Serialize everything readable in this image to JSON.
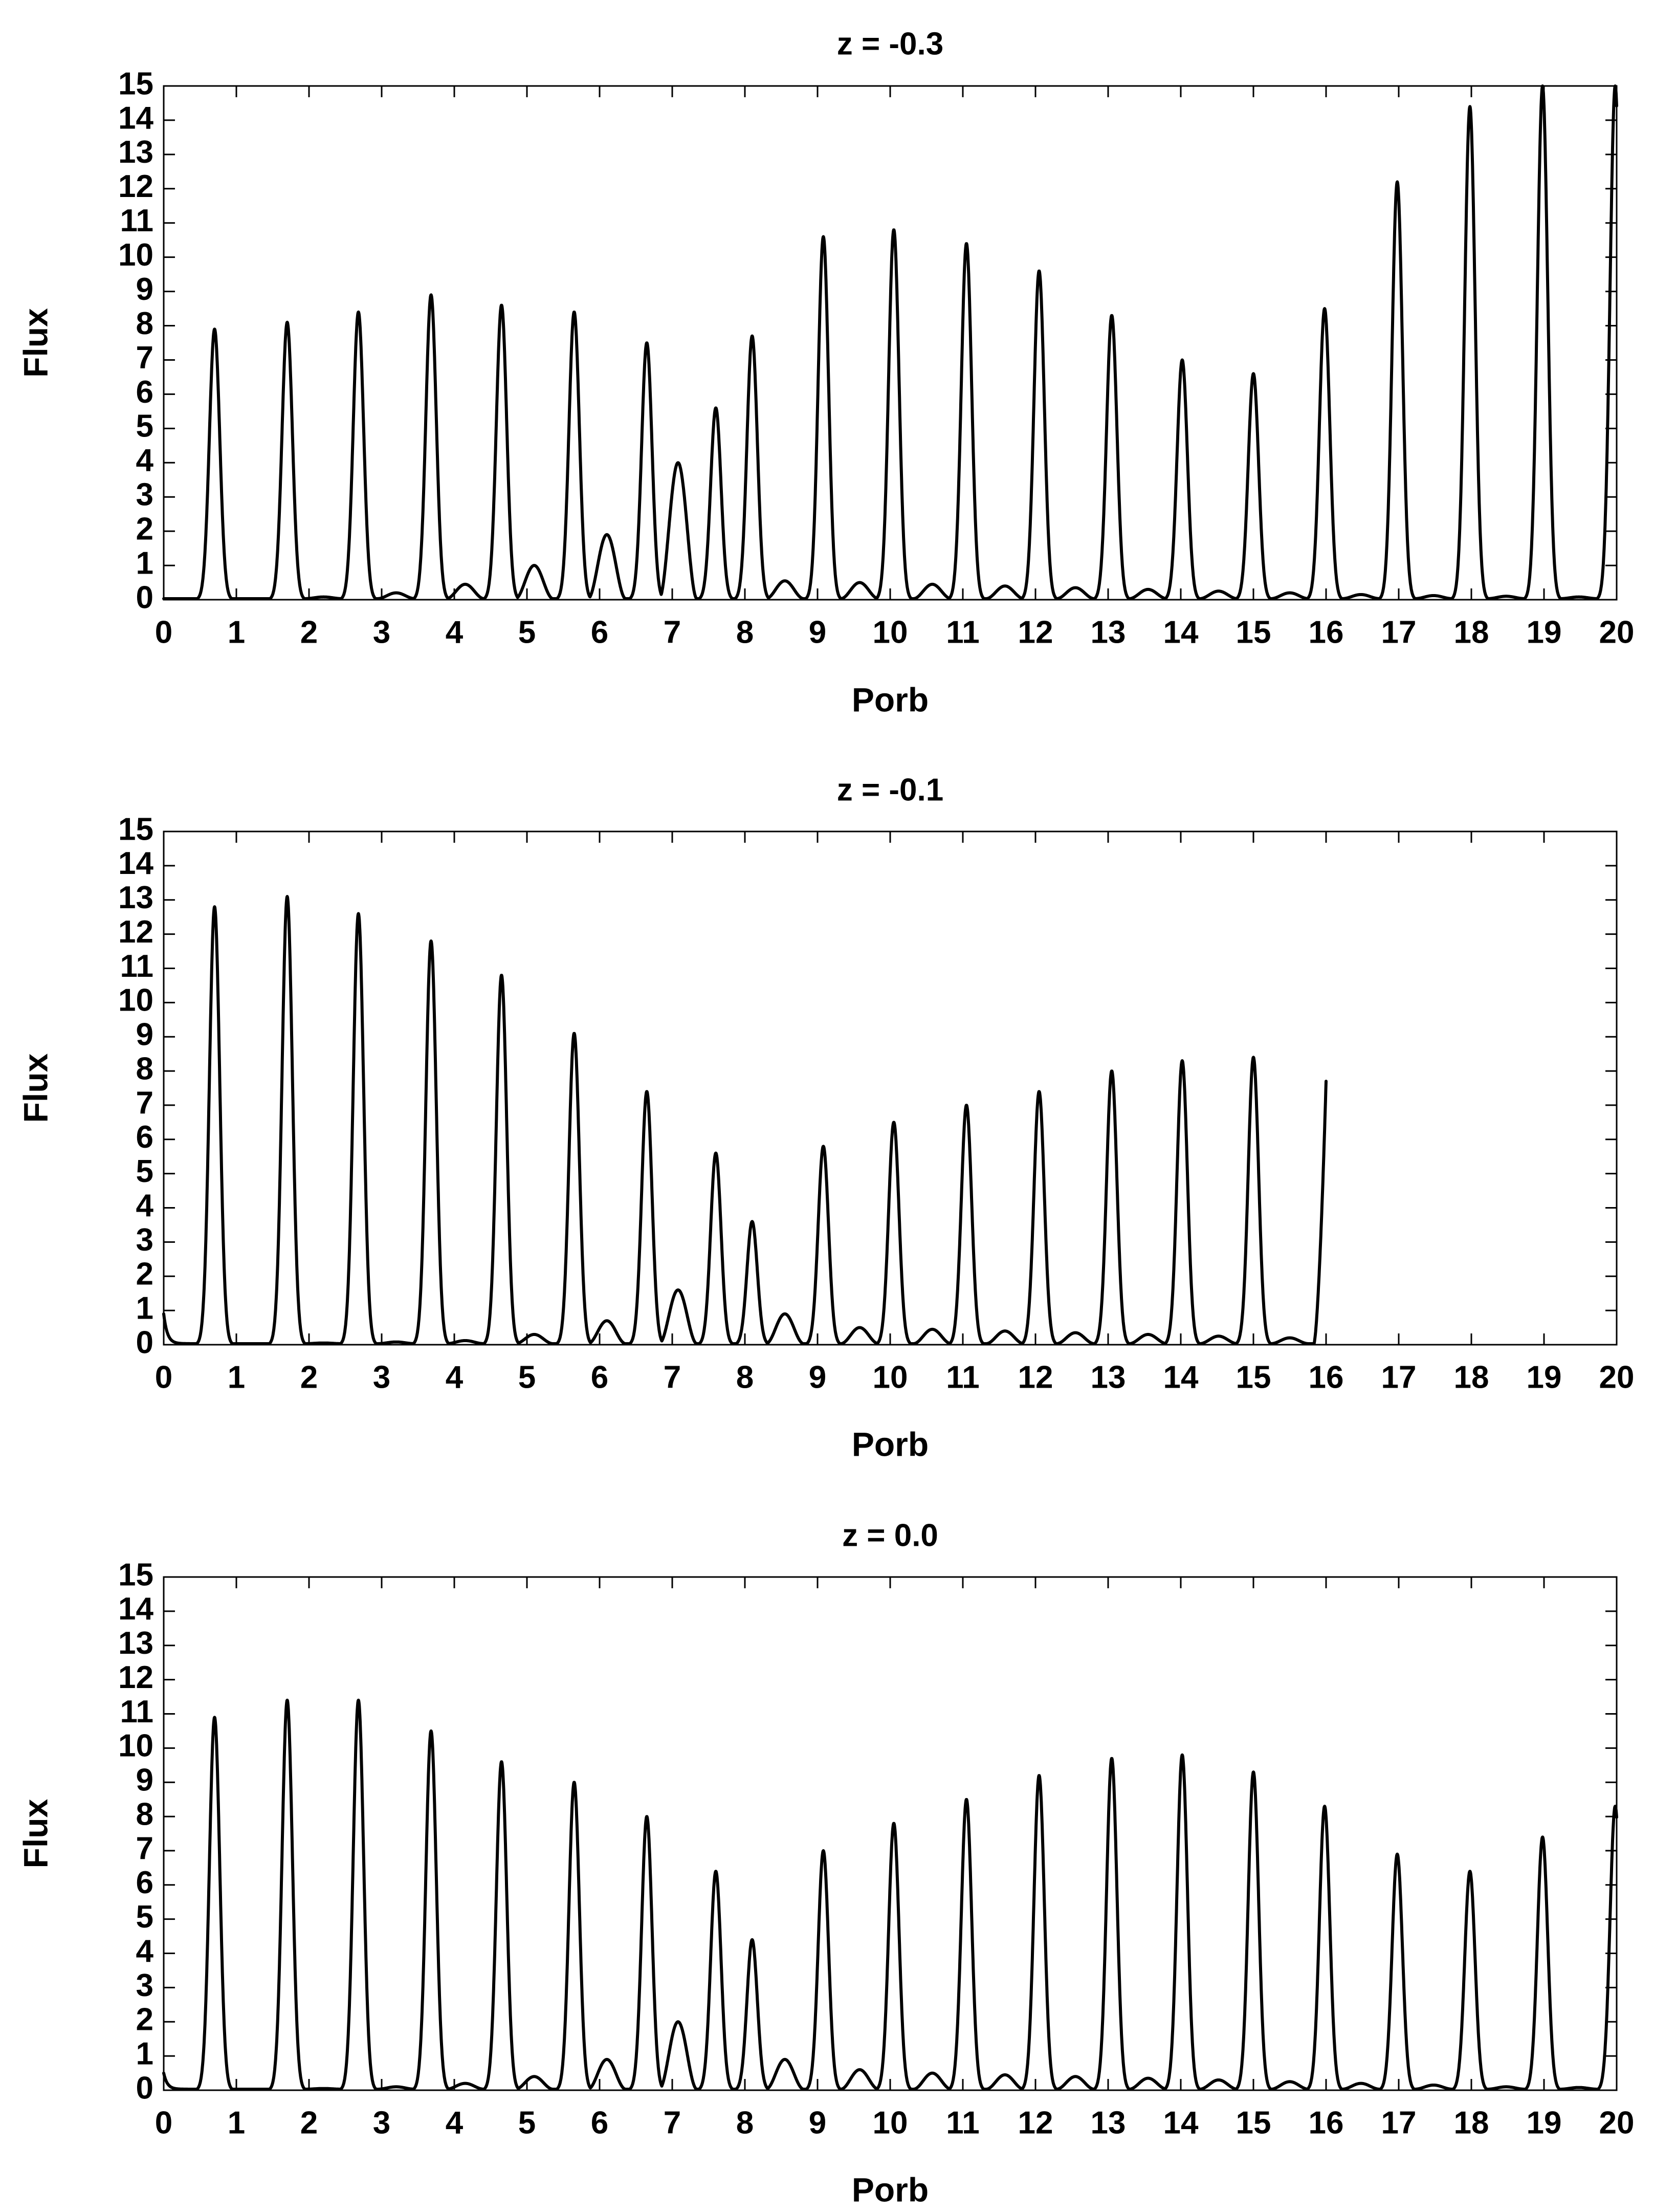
{
  "chart_data": [
    {
      "type": "line",
      "title": "z = -0.3",
      "xlabel": "Porb",
      "ylabel": "Flux",
      "xlim": [
        0,
        20
      ],
      "ylim": [
        0,
        15
      ],
      "xticks": [
        "0",
        "1",
        "2",
        "3",
        "4",
        "5",
        "6",
        "7",
        "8",
        "9",
        "10",
        "11",
        "12",
        "13",
        "14",
        "15",
        "16",
        "17",
        "18",
        "19",
        "20"
      ],
      "yticks": [
        "0",
        "1",
        "2",
        "3",
        "4",
        "5",
        "6",
        "7",
        "8",
        "9",
        "10",
        "11",
        "12",
        "13",
        "14",
        "15"
      ],
      "grid": false,
      "series": [
        {
          "name": "flux",
          "x_end": 20,
          "baseline": 0.03,
          "peak_halfwidth": 0.17,
          "peaks": [
            {
              "x": 0.7,
              "y": 7.9
            },
            {
              "x": 1.7,
              "y": 8.1
            },
            {
              "x": 2.68,
              "y": 8.4
            },
            {
              "x": 3.68,
              "y": 8.9
            },
            {
              "x": 4.65,
              "y": 8.6
            },
            {
              "x": 5.65,
              "y": 8.4
            },
            {
              "x": 6.65,
              "y": 7.5
            },
            {
              "x": 7.6,
              "y": 5.6
            },
            {
              "x": 8.1,
              "y": 7.7
            },
            {
              "x": 9.08,
              "y": 10.6
            },
            {
              "x": 10.05,
              "y": 10.8
            },
            {
              "x": 11.05,
              "y": 10.4
            },
            {
              "x": 12.05,
              "y": 9.6
            },
            {
              "x": 13.05,
              "y": 8.3
            },
            {
              "x": 14.02,
              "y": 7.0
            },
            {
              "x": 15.0,
              "y": 6.6
            },
            {
              "x": 15.98,
              "y": 8.5
            },
            {
              "x": 16.98,
              "y": 12.2
            },
            {
              "x": 17.98,
              "y": 14.4
            },
            {
              "x": 18.98,
              "y": 15.0
            },
            {
              "x": 19.98,
              "y": 15.0
            }
          ],
          "humps": [
            {
              "x": 1.2,
              "y": 0.03
            },
            {
              "x": 2.2,
              "y": 0.08
            },
            {
              "x": 3.2,
              "y": 0.2
            },
            {
              "x": 4.15,
              "y": 0.45
            },
            {
              "x": 5.1,
              "y": 1.0
            },
            {
              "x": 6.1,
              "y": 1.9
            },
            {
              "x": 7.08,
              "y": 4.0
            },
            {
              "x": 8.55,
              "y": 0.55
            },
            {
              "x": 9.58,
              "y": 0.5
            },
            {
              "x": 10.58,
              "y": 0.45
            },
            {
              "x": 11.58,
              "y": 0.4
            },
            {
              "x": 12.55,
              "y": 0.35
            },
            {
              "x": 13.55,
              "y": 0.3
            },
            {
              "x": 14.52,
              "y": 0.25
            },
            {
              "x": 15.5,
              "y": 0.2
            },
            {
              "x": 16.48,
              "y": 0.15
            },
            {
              "x": 17.48,
              "y": 0.12
            },
            {
              "x": 18.48,
              "y": 0.1
            },
            {
              "x": 19.48,
              "y": 0.08
            }
          ]
        }
      ]
    },
    {
      "type": "line",
      "title": "z = -0.1",
      "xlabel": "Porb",
      "ylabel": "Flux",
      "xlim": [
        0,
        20
      ],
      "ylim": [
        0,
        15
      ],
      "xticks": [
        "0",
        "1",
        "2",
        "3",
        "4",
        "5",
        "6",
        "7",
        "8",
        "9",
        "10",
        "11",
        "12",
        "13",
        "14",
        "15",
        "16",
        "17",
        "18",
        "19",
        "20"
      ],
      "yticks": [
        "0",
        "1",
        "2",
        "3",
        "4",
        "5",
        "6",
        "7",
        "8",
        "9",
        "10",
        "11",
        "12",
        "13",
        "14",
        "15"
      ],
      "grid": false,
      "series": [
        {
          "name": "flux",
          "x_end": 16,
          "start_y": 0.9,
          "baseline": 0.03,
          "peak_halfwidth": 0.17,
          "peaks": [
            {
              "x": 0.7,
              "y": 12.8
            },
            {
              "x": 1.7,
              "y": 13.1
            },
            {
              "x": 2.68,
              "y": 12.6
            },
            {
              "x": 3.68,
              "y": 11.8
            },
            {
              "x": 4.65,
              "y": 10.8
            },
            {
              "x": 5.65,
              "y": 9.1
            },
            {
              "x": 6.65,
              "y": 7.4
            },
            {
              "x": 7.6,
              "y": 5.6
            },
            {
              "x": 8.1,
              "y": 3.6
            },
            {
              "x": 9.08,
              "y": 5.8
            },
            {
              "x": 10.05,
              "y": 6.5
            },
            {
              "x": 11.05,
              "y": 7.0
            },
            {
              "x": 12.05,
              "y": 7.4
            },
            {
              "x": 13.05,
              "y": 8.0
            },
            {
              "x": 14.02,
              "y": 8.3
            },
            {
              "x": 15.0,
              "y": 8.4
            }
          ],
          "humps": [
            {
              "x": 1.2,
              "y": 0.03
            },
            {
              "x": 2.2,
              "y": 0.05
            },
            {
              "x": 3.2,
              "y": 0.08
            },
            {
              "x": 4.15,
              "y": 0.12
            },
            {
              "x": 5.1,
              "y": 0.3
            },
            {
              "x": 6.1,
              "y": 0.7
            },
            {
              "x": 7.08,
              "y": 1.6
            },
            {
              "x": 8.55,
              "y": 0.9
            },
            {
              "x": 9.58,
              "y": 0.5
            },
            {
              "x": 10.58,
              "y": 0.45
            },
            {
              "x": 11.58,
              "y": 0.4
            },
            {
              "x": 12.55,
              "y": 0.35
            },
            {
              "x": 13.55,
              "y": 0.3
            },
            {
              "x": 14.52,
              "y": 0.25
            },
            {
              "x": 15.5,
              "y": 0.2
            }
          ],
          "end_y": 7.7
        }
      ]
    },
    {
      "type": "line",
      "title": "z = 0.0",
      "xlabel": "Porb",
      "ylabel": "Flux",
      "xlim": [
        0,
        20
      ],
      "ylim": [
        0,
        15
      ],
      "xticks": [
        "0",
        "1",
        "2",
        "3",
        "4",
        "5",
        "6",
        "7",
        "8",
        "9",
        "10",
        "11",
        "12",
        "13",
        "14",
        "15",
        "16",
        "17",
        "18",
        "19",
        "20"
      ],
      "yticks": [
        "0",
        "1",
        "2",
        "3",
        "4",
        "5",
        "6",
        "7",
        "8",
        "9",
        "10",
        "11",
        "12",
        "13",
        "14",
        "15"
      ],
      "grid": false,
      "series": [
        {
          "name": "flux",
          "x_end": 20,
          "start_y": 0.5,
          "baseline": 0.03,
          "peak_halfwidth": 0.17,
          "peaks": [
            {
              "x": 0.7,
              "y": 10.9
            },
            {
              "x": 1.7,
              "y": 11.4
            },
            {
              "x": 2.68,
              "y": 11.4
            },
            {
              "x": 3.68,
              "y": 10.5
            },
            {
              "x": 4.65,
              "y": 9.6
            },
            {
              "x": 5.65,
              "y": 9.0
            },
            {
              "x": 6.65,
              "y": 8.0
            },
            {
              "x": 7.6,
              "y": 6.4
            },
            {
              "x": 8.1,
              "y": 4.4
            },
            {
              "x": 9.08,
              "y": 7.0
            },
            {
              "x": 10.05,
              "y": 7.8
            },
            {
              "x": 11.05,
              "y": 8.5
            },
            {
              "x": 12.05,
              "y": 9.2
            },
            {
              "x": 13.05,
              "y": 9.7
            },
            {
              "x": 14.02,
              "y": 9.8
            },
            {
              "x": 15.0,
              "y": 9.3
            },
            {
              "x": 15.98,
              "y": 8.3
            },
            {
              "x": 16.98,
              "y": 6.9
            },
            {
              "x": 17.98,
              "y": 6.4
            },
            {
              "x": 18.98,
              "y": 7.4
            },
            {
              "x": 19.98,
              "y": 8.3
            }
          ],
          "humps": [
            {
              "x": 1.2,
              "y": 0.03
            },
            {
              "x": 2.2,
              "y": 0.05
            },
            {
              "x": 3.2,
              "y": 0.1
            },
            {
              "x": 4.15,
              "y": 0.2
            },
            {
              "x": 5.1,
              "y": 0.4
            },
            {
              "x": 6.1,
              "y": 0.9
            },
            {
              "x": 7.08,
              "y": 2.0
            },
            {
              "x": 8.55,
              "y": 0.9
            },
            {
              "x": 9.58,
              "y": 0.6
            },
            {
              "x": 10.58,
              "y": 0.5
            },
            {
              "x": 11.58,
              "y": 0.45
            },
            {
              "x": 12.55,
              "y": 0.4
            },
            {
              "x": 13.55,
              "y": 0.35
            },
            {
              "x": 14.52,
              "y": 0.3
            },
            {
              "x": 15.5,
              "y": 0.25
            },
            {
              "x": 16.48,
              "y": 0.2
            },
            {
              "x": 17.48,
              "y": 0.15
            },
            {
              "x": 18.48,
              "y": 0.1
            },
            {
              "x": 19.48,
              "y": 0.08
            }
          ]
        }
      ]
    }
  ]
}
